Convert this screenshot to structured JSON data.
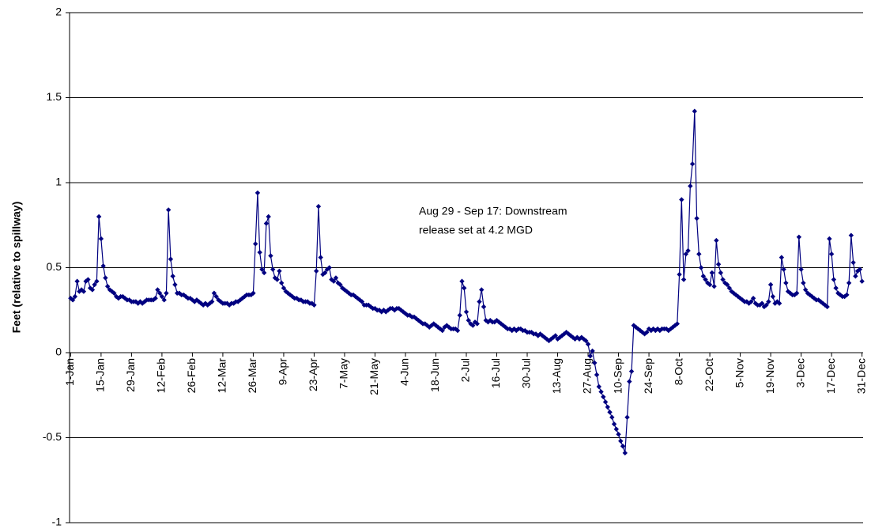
{
  "chart_data": {
    "type": "line",
    "y_label": "Feet (relative to spillway)",
    "annotation": [
      "Aug 29 - Sep 17:  Downstream",
      "release set at 4.2 MGD"
    ],
    "ylim": [
      -1,
      2
    ],
    "yticks": [
      -1,
      -0.5,
      0,
      0.5,
      1,
      1.5,
      2
    ],
    "grid": true,
    "categories": [
      "1-Jan",
      null,
      null,
      null,
      null,
      null,
      null,
      null,
      null,
      null,
      null,
      null,
      null,
      null,
      "15-Jan",
      null,
      null,
      null,
      null,
      null,
      null,
      null,
      null,
      null,
      null,
      null,
      null,
      null,
      "29-Jan",
      null,
      null,
      null,
      null,
      null,
      null,
      null,
      null,
      null,
      null,
      null,
      null,
      null,
      "12-Feb",
      null,
      null,
      null,
      null,
      null,
      null,
      null,
      null,
      null,
      null,
      null,
      null,
      null,
      "26-Feb",
      null,
      null,
      null,
      null,
      null,
      null,
      null,
      null,
      null,
      null,
      null,
      null,
      null,
      "12-Mar",
      null,
      null,
      null,
      null,
      null,
      null,
      null,
      null,
      null,
      null,
      null,
      null,
      null,
      "26-Mar",
      null,
      null,
      null,
      null,
      null,
      null,
      null,
      null,
      null,
      null,
      null,
      null,
      null,
      "9-Apr",
      null,
      null,
      null,
      null,
      null,
      null,
      null,
      null,
      null,
      null,
      null,
      null,
      null,
      "23-Apr",
      null,
      null,
      null,
      null,
      null,
      null,
      null,
      null,
      null,
      null,
      null,
      null,
      null,
      "7-May",
      null,
      null,
      null,
      null,
      null,
      null,
      null,
      null,
      null,
      null,
      null,
      null,
      null,
      "21-May",
      null,
      null,
      null,
      null,
      null,
      null,
      null,
      null,
      null,
      null,
      null,
      null,
      null,
      "4-Jun",
      null,
      null,
      null,
      null,
      null,
      null,
      null,
      null,
      null,
      null,
      null,
      null,
      null,
      "18-Jun",
      null,
      null,
      null,
      null,
      null,
      null,
      null,
      null,
      null,
      null,
      null,
      null,
      null,
      "2-Jul",
      null,
      null,
      null,
      null,
      null,
      null,
      null,
      null,
      null,
      null,
      null,
      null,
      null,
      "16-Jul",
      null,
      null,
      null,
      null,
      null,
      null,
      null,
      null,
      null,
      null,
      null,
      null,
      null,
      "30-Jul",
      null,
      null,
      null,
      null,
      null,
      null,
      null,
      null,
      null,
      null,
      null,
      null,
      null,
      "13-Aug",
      null,
      null,
      null,
      null,
      null,
      null,
      null,
      null,
      null,
      null,
      null,
      null,
      null,
      "27-Aug",
      null,
      null,
      null,
      null,
      null,
      null,
      null,
      null,
      null,
      null,
      null,
      null,
      null,
      "10-Sep",
      null,
      null,
      null,
      null,
      null,
      null,
      null,
      null,
      null,
      null,
      null,
      null,
      null,
      "24-Sep",
      null,
      null,
      null,
      null,
      null,
      null,
      null,
      null,
      null,
      null,
      null,
      null,
      null,
      "8-Oct",
      null,
      null,
      null,
      null,
      null,
      null,
      null,
      null,
      null,
      null,
      null,
      null,
      null,
      "22-Oct",
      null,
      null,
      null,
      null,
      null,
      null,
      null,
      null,
      null,
      null,
      null,
      null,
      null,
      "5-Nov",
      null,
      null,
      null,
      null,
      null,
      null,
      null,
      null,
      null,
      null,
      null,
      null,
      null,
      "19-Nov",
      null,
      null,
      null,
      null,
      null,
      null,
      null,
      null,
      null,
      null,
      null,
      null,
      null,
      "3-Dec",
      null,
      null,
      null,
      null,
      null,
      null,
      null,
      null,
      null,
      null,
      null,
      null,
      null,
      "17-Dec",
      null,
      null,
      null,
      null,
      null,
      null,
      null,
      null,
      null,
      null,
      null,
      null,
      null,
      "31-Dec"
    ],
    "color": "#000080",
    "values": [
      0.32,
      0.31,
      0.33,
      0.42,
      0.36,
      0.37,
      0.36,
      0.42,
      0.43,
      0.38,
      0.37,
      0.4,
      0.42,
      0.8,
      0.67,
      0.51,
      0.44,
      0.39,
      0.37,
      0.36,
      0.35,
      0.33,
      0.32,
      0.33,
      0.33,
      0.32,
      0.31,
      0.31,
      0.3,
      0.3,
      0.3,
      0.29,
      0.3,
      0.29,
      0.3,
      0.31,
      0.31,
      0.31,
      0.31,
      0.32,
      0.37,
      0.35,
      0.33,
      0.31,
      0.35,
      0.84,
      0.55,
      0.45,
      0.4,
      0.35,
      0.35,
      0.34,
      0.34,
      0.33,
      0.32,
      0.32,
      0.31,
      0.3,
      0.31,
      0.3,
      0.29,
      0.28,
      0.29,
      0.28,
      0.29,
      0.3,
      0.35,
      0.33,
      0.31,
      0.3,
      0.29,
      0.29,
      0.29,
      0.28,
      0.29,
      0.29,
      0.3,
      0.3,
      0.31,
      0.32,
      0.33,
      0.34,
      0.34,
      0.34,
      0.35,
      0.64,
      0.94,
      0.59,
      0.49,
      0.47,
      0.76,
      0.8,
      0.57,
      0.49,
      0.44,
      0.43,
      0.48,
      0.41,
      0.38,
      0.36,
      0.35,
      0.34,
      0.33,
      0.32,
      0.32,
      0.31,
      0.31,
      0.3,
      0.3,
      0.3,
      0.29,
      0.29,
      0.28,
      0.48,
      0.86,
      0.56,
      0.46,
      0.47,
      0.49,
      0.5,
      0.43,
      0.42,
      0.44,
      0.41,
      0.4,
      0.38,
      0.37,
      0.36,
      0.35,
      0.34,
      0.34,
      0.33,
      0.32,
      0.31,
      0.3,
      0.28,
      0.28,
      0.28,
      0.27,
      0.26,
      0.26,
      0.25,
      0.25,
      0.24,
      0.25,
      0.24,
      0.25,
      0.26,
      0.26,
      0.25,
      0.26,
      0.26,
      0.25,
      0.24,
      0.23,
      0.22,
      0.22,
      0.21,
      0.21,
      0.2,
      0.19,
      0.18,
      0.17,
      0.17,
      0.16,
      0.15,
      0.16,
      0.17,
      0.16,
      0.15,
      0.14,
      0.13,
      0.15,
      0.16,
      0.15,
      0.14,
      0.14,
      0.14,
      0.13,
      0.22,
      0.42,
      0.38,
      0.24,
      0.19,
      0.17,
      0.16,
      0.18,
      0.17,
      0.3,
      0.37,
      0.27,
      0.19,
      0.18,
      0.19,
      0.18,
      0.18,
      0.19,
      0.18,
      0.17,
      0.16,
      0.15,
      0.14,
      0.14,
      0.13,
      0.14,
      0.13,
      0.14,
      0.14,
      0.13,
      0.13,
      0.12,
      0.12,
      0.12,
      0.11,
      0.11,
      0.1,
      0.11,
      0.1,
      0.09,
      0.08,
      0.07,
      0.08,
      0.09,
      0.1,
      0.08,
      0.09,
      0.1,
      0.11,
      0.12,
      0.11,
      0.1,
      0.09,
      0.08,
      0.09,
      0.08,
      0.09,
      0.08,
      0.07,
      0.05,
      -0.02,
      0.01,
      -0.06,
      -0.13,
      -0.2,
      -0.23,
      -0.26,
      -0.29,
      -0.32,
      -0.35,
      -0.38,
      -0.42,
      -0.45,
      -0.48,
      -0.52,
      -0.55,
      -0.59,
      -0.38,
      -0.17,
      -0.11,
      0.16,
      0.15,
      0.14,
      0.13,
      0.12,
      0.11,
      0.12,
      0.14,
      0.13,
      0.14,
      0.13,
      0.14,
      0.13,
      0.14,
      0.14,
      0.14,
      0.13,
      0.14,
      0.15,
      0.16,
      0.17,
      0.46,
      0.9,
      0.43,
      0.58,
      0.6,
      0.98,
      1.11,
      1.42,
      0.79,
      0.58,
      0.5,
      0.45,
      0.43,
      0.41,
      0.4,
      0.47,
      0.39,
      0.66,
      0.52,
      0.47,
      0.43,
      0.41,
      0.4,
      0.38,
      0.36,
      0.35,
      0.34,
      0.33,
      0.32,
      0.31,
      0.3,
      0.3,
      0.29,
      0.3,
      0.32,
      0.29,
      0.28,
      0.28,
      0.29,
      0.27,
      0.28,
      0.3,
      0.4,
      0.33,
      0.29,
      0.3,
      0.29,
      0.56,
      0.49,
      0.41,
      0.36,
      0.35,
      0.34,
      0.34,
      0.35,
      0.68,
      0.49,
      0.41,
      0.37,
      0.35,
      0.34,
      0.33,
      0.32,
      0.31,
      0.31,
      0.3,
      0.29,
      0.28,
      0.27,
      0.67,
      0.58,
      0.43,
      0.38,
      0.35,
      0.34,
      0.33,
      0.33,
      0.34,
      0.41,
      0.69,
      0.53,
      0.45,
      0.48,
      0.49,
      0.42
    ]
  }
}
